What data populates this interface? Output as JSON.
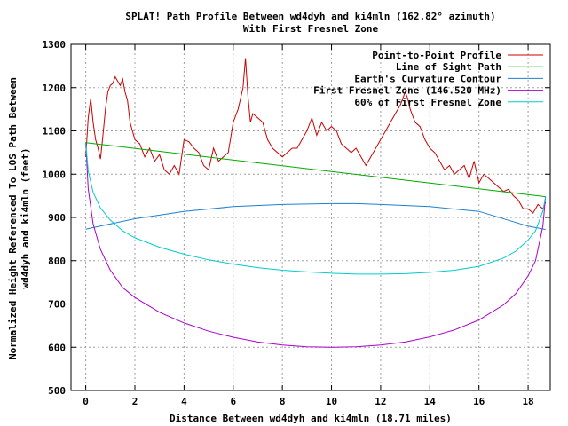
{
  "chart_data": {
    "type": "line",
    "title_line1": "SPLAT! Path Profile Between wd4dyh and ki4mln (162.82° azimuth)",
    "title_line2": "With First Fresnel Zone",
    "xlabel": "Distance Between wd4dyh and ki4mln (18.71 miles)",
    "ylabel_line1": "Normalized Height Referenced To LOS Path Between",
    "ylabel_line2": "wd4dyh and ki4mln (feet)",
    "xlim": [
      -0.6,
      18.9
    ],
    "ylim": [
      500,
      1300
    ],
    "xticks": [
      0,
      2,
      4,
      6,
      8,
      10,
      12,
      14,
      16,
      18
    ],
    "yticks": [
      500,
      600,
      700,
      800,
      900,
      1000,
      1100,
      1200,
      1300
    ],
    "grid": true,
    "legend_position": "top-right",
    "series": [
      {
        "name": "Point-to-Point Profile",
        "color": "#cc0000",
        "x": [
          0,
          0.1,
          0.2,
          0.3,
          0.4,
          0.5,
          0.6,
          0.7,
          0.8,
          0.9,
          1.0,
          1.1,
          1.2,
          1.3,
          1.4,
          1.5,
          1.6,
          1.7,
          1.8,
          1.9,
          2.0,
          2.2,
          2.4,
          2.6,
          2.8,
          3.0,
          3.2,
          3.4,
          3.6,
          3.8,
          4.0,
          4.2,
          4.4,
          4.6,
          4.8,
          5.0,
          5.2,
          5.4,
          5.6,
          5.8,
          6.0,
          6.2,
          6.4,
          6.5,
          6.6,
          6.7,
          6.8,
          7.0,
          7.2,
          7.4,
          7.6,
          7.8,
          8.0,
          8.2,
          8.4,
          8.6,
          8.8,
          9.0,
          9.2,
          9.4,
          9.6,
          9.8,
          10.0,
          10.2,
          10.4,
          10.6,
          10.8,
          11.0,
          11.2,
          11.4,
          11.6,
          11.8,
          12.0,
          12.2,
          12.4,
          12.6,
          12.8,
          13.0,
          13.1,
          13.2,
          13.4,
          13.6,
          13.8,
          14.0,
          14.2,
          14.4,
          14.6,
          14.8,
          15.0,
          15.2,
          15.4,
          15.6,
          15.8,
          16.0,
          16.2,
          16.4,
          16.6,
          16.8,
          17.0,
          17.2,
          17.4,
          17.6,
          17.8,
          18.0,
          18.2,
          18.4,
          18.6,
          18.71
        ],
        "y": [
          1040,
          1130,
          1175,
          1120,
          1080,
          1060,
          1035,
          1090,
          1150,
          1190,
          1205,
          1210,
          1225,
          1215,
          1205,
          1220,
          1190,
          1170,
          1120,
          1100,
          1080,
          1070,
          1040,
          1060,
          1030,
          1045,
          1010,
          1000,
          1020,
          1000,
          1080,
          1075,
          1060,
          1050,
          1020,
          1010,
          1060,
          1030,
          1040,
          1050,
          1120,
          1150,
          1200,
          1268,
          1180,
          1120,
          1140,
          1130,
          1120,
          1080,
          1060,
          1050,
          1040,
          1050,
          1060,
          1060,
          1080,
          1100,
          1130,
          1090,
          1120,
          1100,
          1110,
          1100,
          1070,
          1060,
          1050,
          1060,
          1040,
          1020,
          1040,
          1060,
          1080,
          1100,
          1120,
          1140,
          1160,
          1190,
          1175,
          1150,
          1120,
          1110,
          1080,
          1060,
          1050,
          1030,
          1010,
          1020,
          1000,
          1010,
          1020,
          990,
          1030,
          980,
          1000,
          990,
          980,
          970,
          960,
          965,
          950,
          940,
          920,
          920,
          910,
          930,
          920,
          935
        ]
      },
      {
        "name": "Line of Sight Path",
        "color": "#00aa00",
        "x": [
          0,
          18.71
        ],
        "y": [
          1073,
          948
        ]
      },
      {
        "name": "Earth's Curvature Contour",
        "color": "#1e7fd0",
        "x": [
          0,
          2,
          4,
          6,
          8,
          10,
          11,
          12,
          14,
          16,
          18,
          18.71
        ],
        "y": [
          873,
          897,
          914,
          925,
          930,
          932,
          932,
          930,
          925,
          914,
          880,
          872
        ]
      },
      {
        "name": "First Fresnel Zone (146.520 MHz)",
        "color": "#aa00cc",
        "x": [
          0,
          0.1,
          0.3,
          0.6,
          1,
          1.5,
          2,
          3,
          4,
          5,
          6,
          7,
          8,
          9,
          10,
          11,
          12,
          13,
          14,
          15,
          16,
          17,
          17.5,
          18,
          18.3,
          18.6,
          18.71
        ],
        "y": [
          1073,
          966,
          885,
          826,
          778,
          738,
          715,
          681,
          656,
          637,
          623,
          612,
          605,
          601,
          600,
          601,
          605,
          612,
          624,
          640,
          663,
          698,
          724,
          765,
          800,
          880,
          948
        ]
      },
      {
        "name": "60% of First Fresnel Zone",
        "color": "#00cccc",
        "x": [
          0,
          0.1,
          0.3,
          0.6,
          1,
          1.5,
          2,
          3,
          4,
          5,
          6,
          7,
          8,
          9,
          10,
          11,
          12,
          13,
          14,
          15,
          16,
          17,
          17.5,
          18,
          18.3,
          18.6,
          18.71
        ],
        "y": [
          1073,
          1007,
          958,
          922,
          894,
          869,
          853,
          831,
          815,
          802,
          792,
          784,
          778,
          774,
          771,
          769,
          769,
          770,
          773,
          778,
          787,
          806,
          822,
          848,
          869,
          915,
          948
        ]
      }
    ]
  }
}
